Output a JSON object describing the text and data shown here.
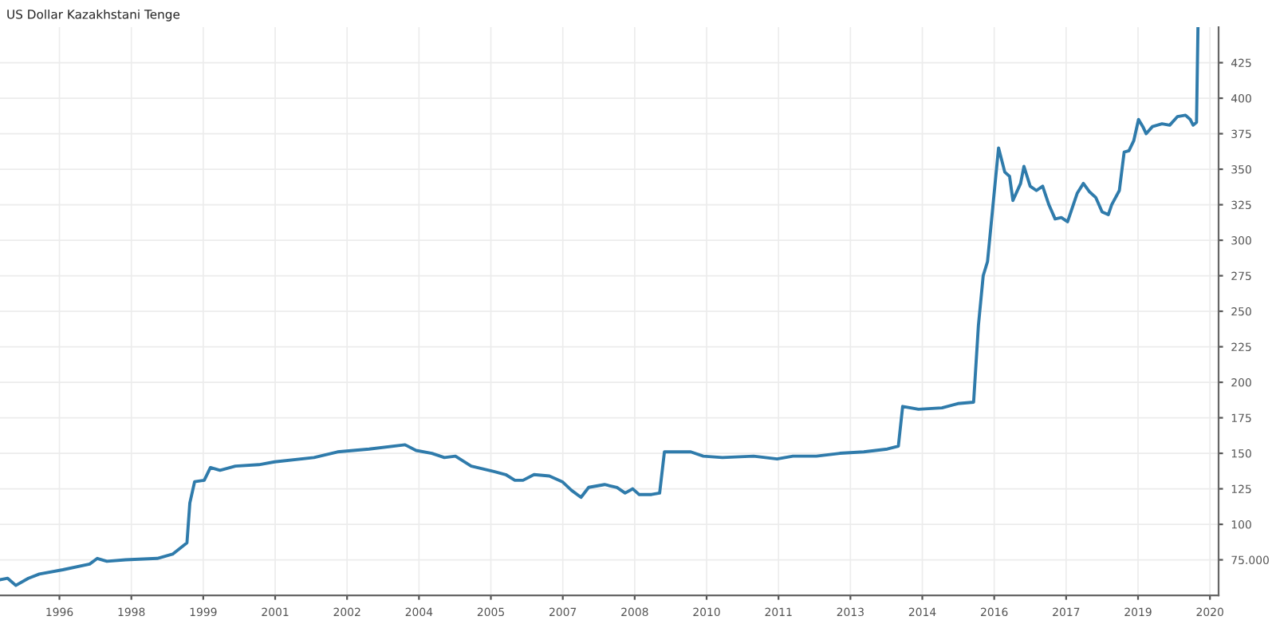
{
  "chart_data": {
    "type": "line",
    "title": "US Dollar Kazakhstani Tenge",
    "x": [
      1995.26,
      1995.42,
      1995.59,
      1995.85,
      1996.08,
      1996.57,
      1997.13,
      1997.29,
      1997.49,
      1997.88,
      1998.54,
      1998.86,
      1999.16,
      1999.22,
      1999.32,
      1999.52,
      1999.65,
      1999.85,
      2000.17,
      2000.66,
      2000.99,
      2001.81,
      2002.3,
      2002.96,
      2003.71,
      2003.94,
      2004.27,
      2004.53,
      2004.76,
      2005.09,
      2005.58,
      2005.81,
      2006.0,
      2006.17,
      2006.4,
      2006.72,
      2006.99,
      2007.18,
      2007.38,
      2007.54,
      2007.87,
      2008.13,
      2008.3,
      2008.46,
      2008.59,
      2008.85,
      2009.02,
      2009.12,
      2009.67,
      2009.93,
      2010.33,
      2010.98,
      2011.47,
      2011.8,
      2012.29,
      2012.78,
      2013.28,
      2013.77,
      2014.0,
      2014.09,
      2014.42,
      2014.91,
      2015.24,
      2015.57,
      2015.67,
      2015.77,
      2015.86,
      2016.09,
      2016.22,
      2016.32,
      2016.39,
      2016.55,
      2016.62,
      2016.75,
      2016.88,
      2017.01,
      2017.14,
      2017.27,
      2017.4,
      2017.53,
      2017.73,
      2017.86,
      2017.99,
      2018.12,
      2018.25,
      2018.38,
      2018.45,
      2018.61,
      2018.71,
      2018.81,
      2018.91,
      2019.01,
      2019.1,
      2019.17,
      2019.3,
      2019.5,
      2019.66,
      2019.82,
      2019.99,
      2020.09,
      2020.15,
      2020.22,
      2020.25
    ],
    "series": [
      {
        "color": "#2f7bab",
        "values": [
          61,
          62,
          57,
          62,
          65,
          68,
          72,
          76,
          74,
          75,
          76,
          79,
          87,
          115,
          130,
          131,
          140,
          138,
          141,
          142,
          144,
          147,
          151,
          153,
          156,
          152,
          150,
          147,
          148,
          141,
          137,
          135,
          131,
          131,
          135,
          134,
          130,
          124,
          119,
          126,
          128,
          126,
          122,
          125,
          121,
          121,
          122,
          151,
          151,
          148,
          147,
          148,
          146,
          148,
          148,
          150,
          151,
          153,
          155,
          183,
          181,
          182,
          185,
          186,
          240,
          275,
          285,
          365,
          348,
          345,
          328,
          340,
          352,
          338,
          335,
          338,
          325,
          315,
          316,
          313,
          333,
          340,
          334,
          330,
          320,
          318,
          325,
          335,
          362,
          363,
          370,
          385,
          380,
          375,
          380,
          382,
          381,
          387,
          388,
          385,
          381,
          383,
          450
        ]
      }
    ],
    "xlim": [
      1995.26,
      2020.68
    ],
    "ylim": [
      50,
      450
    ],
    "xticks": [
      {
        "value": 1996.5,
        "label": "1996"
      },
      {
        "value": 1998,
        "label": "1998"
      },
      {
        "value": 1999.5,
        "label": "1999"
      },
      {
        "value": 2001,
        "label": "2001"
      },
      {
        "value": 2002.5,
        "label": "2002"
      },
      {
        "value": 2004,
        "label": "2004"
      },
      {
        "value": 2005.5,
        "label": "2005"
      },
      {
        "value": 2007,
        "label": "2007"
      },
      {
        "value": 2008.5,
        "label": "2008"
      },
      {
        "value": 2010,
        "label": "2010"
      },
      {
        "value": 2011.5,
        "label": "2011"
      },
      {
        "value": 2013,
        "label": "2013"
      },
      {
        "value": 2014.5,
        "label": "2014"
      },
      {
        "value": 2016,
        "label": "2016"
      },
      {
        "value": 2017.5,
        "label": "2017"
      },
      {
        "value": 2019,
        "label": "2019"
      },
      {
        "value": 2020.5,
        "label": "2020"
      }
    ],
    "yticks": [
      {
        "value": 75,
        "label": "75.000"
      },
      100,
      125,
      150,
      175,
      200,
      225,
      250,
      275,
      300,
      325,
      350,
      375,
      400,
      425
    ],
    "grid": true,
    "line_style": "solid",
    "marker": "none"
  }
}
